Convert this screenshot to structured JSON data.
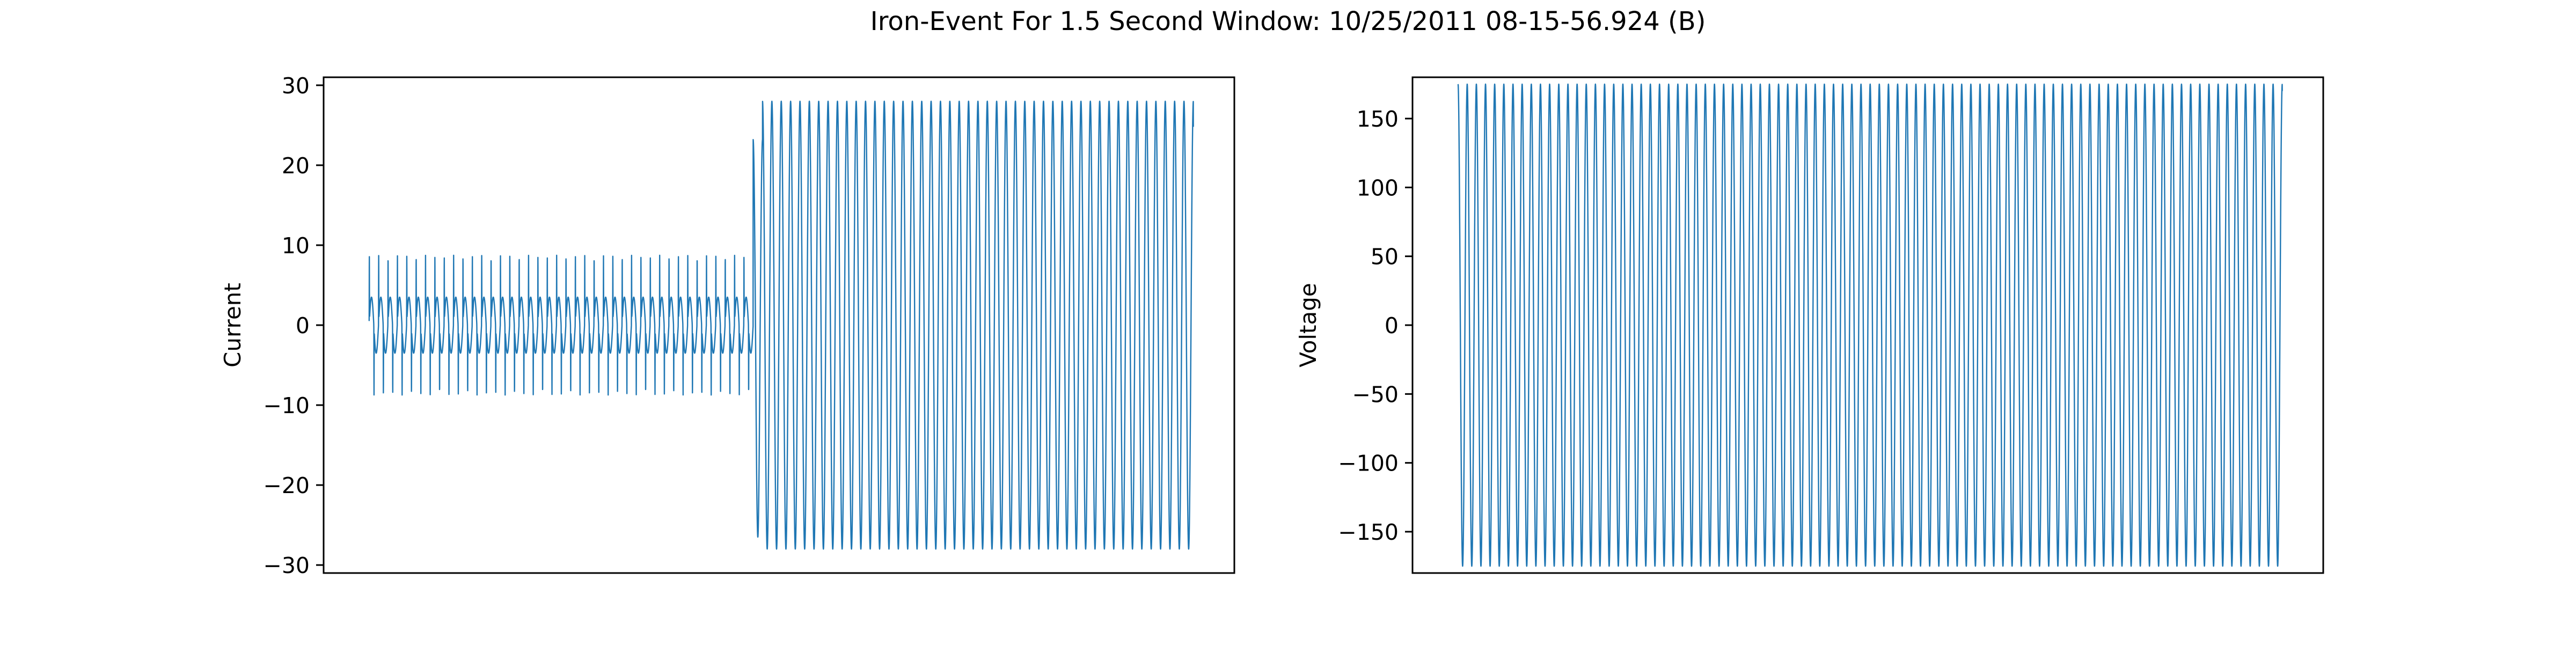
{
  "figure": {
    "title": "Iron-Event For 1.5 Second Window: 10/25/2011 08-15-56.924 (B)"
  },
  "colors": {
    "line": "#1f77b4",
    "axes": "#000000",
    "background": "#ffffff"
  },
  "chart_data": [
    {
      "type": "line",
      "title": "",
      "xlabel": "",
      "ylabel": "Current",
      "ylim": [
        -31,
        31
      ],
      "yticks": [
        -30,
        -20,
        -10,
        0,
        10,
        20,
        30
      ],
      "ytick_labels": [
        "−30",
        "−20",
        "−10",
        "0",
        "10",
        "20",
        "30"
      ],
      "x_ticks_shown": false,
      "grid": false,
      "legend": "none",
      "cycles": 88,
      "segments": [
        {
          "cycles": 41,
          "peak_amplitude": 11.8,
          "shape": "spiky-harmonic",
          "inner_level": 3.5
        },
        {
          "cycles": 47,
          "peak_amplitude": 28.0,
          "shape": "sine",
          "first_peak": 23.2,
          "first_trough": -26.5
        }
      ],
      "end_value": 24.8
    },
    {
      "type": "line",
      "title": "",
      "xlabel": "",
      "ylabel": "Voltage",
      "ylim": [
        -180,
        180
      ],
      "yticks": [
        -150,
        -100,
        -50,
        0,
        50,
        100,
        150
      ],
      "ytick_labels": [
        "−150",
        "−100",
        "−50",
        "0",
        "50",
        "100",
        "150"
      ],
      "x_ticks_shown": false,
      "grid": false,
      "legend": "none",
      "cycles": 90,
      "peak_amplitude": 175,
      "shape": "sine",
      "end_value": 170
    }
  ]
}
